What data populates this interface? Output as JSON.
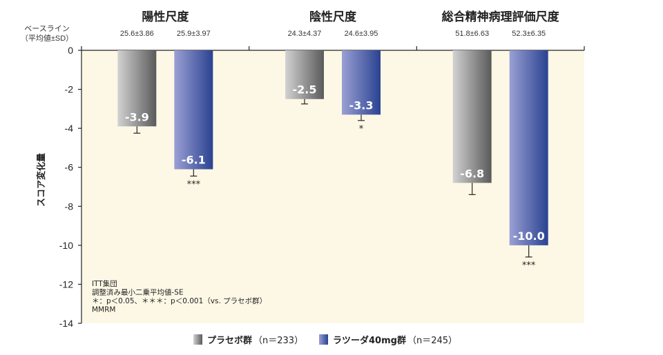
{
  "chart_data": {
    "type": "bar",
    "categories": [
      "陽性尺度",
      "陰性尺度",
      "総合精神病理評価尺度"
    ],
    "series": [
      {
        "name": "プラセボ群",
        "n_label": "（n＝233）",
        "values": [
          -3.9,
          -2.5,
          -6.8
        ],
        "se": [
          0.35,
          0.25,
          0.6
        ],
        "baseline": [
          "25.6±3.86",
          "24.3±4.37",
          "51.8±6.63"
        ],
        "sig": [
          "",
          "",
          ""
        ],
        "colors": [
          "#c9c9c9",
          "#5f5f5f"
        ]
      },
      {
        "name": "ラツーダ40mg群",
        "n_label": "（n＝245）",
        "values": [
          -6.1,
          -3.3,
          -10.0
        ],
        "se": [
          0.35,
          0.3,
          0.6
        ],
        "baseline": [
          "25.9±3.97",
          "24.6±3.95",
          "52.3±6.35"
        ],
        "sig": [
          "***",
          "*",
          "***"
        ],
        "colors": [
          "#9098cf",
          "#2d4595"
        ]
      }
    ],
    "ylabel": "スコア変化量",
    "baseline_label": [
      "ベースライン",
      "（平均値±SD）"
    ],
    "ylim": [
      -14,
      0
    ],
    "yticks": [
      0,
      -2,
      -4,
      -6,
      -8,
      -10,
      -12,
      -14
    ],
    "notes": [
      "ITT集団",
      "調整済み最小二乗平均値-SE",
      "＊：p＜0.05、＊＊＊：p＜0.001（vs. プラセボ群）",
      "MMRM"
    ],
    "legend_position": "bottom",
    "plot_background": "#fdf8e6"
  }
}
